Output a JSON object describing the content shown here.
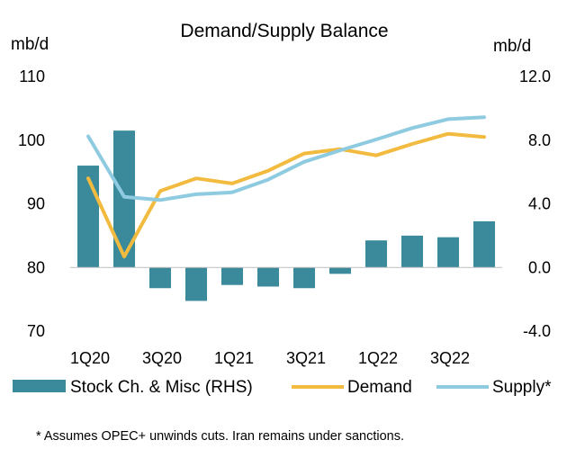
{
  "chart_data": {
    "type": "bar+line",
    "title": "Demand/Supply Balance",
    "left_axis_label": "mb/d",
    "right_axis_label": "mb/d",
    "left_ylim": [
      70,
      110
    ],
    "left_ticks": [
      "110",
      "100",
      "90",
      "80",
      "70"
    ],
    "left_tick_values": [
      110,
      100,
      90,
      80,
      70
    ],
    "right_ylim": [
      -4,
      12
    ],
    "right_ticks": [
      "12.0",
      "8.0",
      "4.0",
      "0.0",
      "-4.0"
    ],
    "right_tick_values": [
      12,
      8,
      4,
      0,
      -4
    ],
    "categories": [
      "1Q20",
      "2Q20",
      "3Q20",
      "4Q20",
      "1Q21",
      "2Q21",
      "3Q21",
      "4Q21",
      "1Q22",
      "2Q22",
      "3Q22",
      "4Q22"
    ],
    "x_tick_labels": [
      "1Q20",
      "",
      "3Q20",
      "",
      "1Q21",
      "",
      "3Q21",
      "",
      "1Q22",
      "",
      "3Q22",
      ""
    ],
    "series": [
      {
        "name": "Stock Ch. & Misc (RHS)",
        "type": "bar",
        "axis": "right",
        "color": "#3a8a9c",
        "values": [
          6.4,
          8.6,
          -1.3,
          -2.1,
          -1.1,
          -1.2,
          -1.3,
          -0.4,
          1.7,
          2.0,
          1.9,
          2.9
        ]
      },
      {
        "name": "Demand",
        "type": "line",
        "axis": "left",
        "color": "#f2bb3f",
        "values": [
          94.0,
          81.7,
          92.0,
          94.0,
          93.2,
          95.2,
          97.9,
          98.6,
          97.6,
          99.4,
          101.0,
          100.5
        ]
      },
      {
        "name": "Supply*",
        "type": "line",
        "axis": "left",
        "color": "#8fcbe0",
        "values": [
          100.6,
          91.1,
          90.6,
          91.5,
          91.8,
          93.8,
          96.6,
          98.4,
          100.1,
          101.9,
          103.3,
          103.6
        ]
      }
    ],
    "legend": [
      "Stock Ch. & Misc (RHS)",
      "Demand",
      "Supply*"
    ],
    "legend_position": "bottom",
    "footnote": "* Assumes OPEC+ unwinds cuts. Iran remains under sanctions.",
    "grid": false
  }
}
